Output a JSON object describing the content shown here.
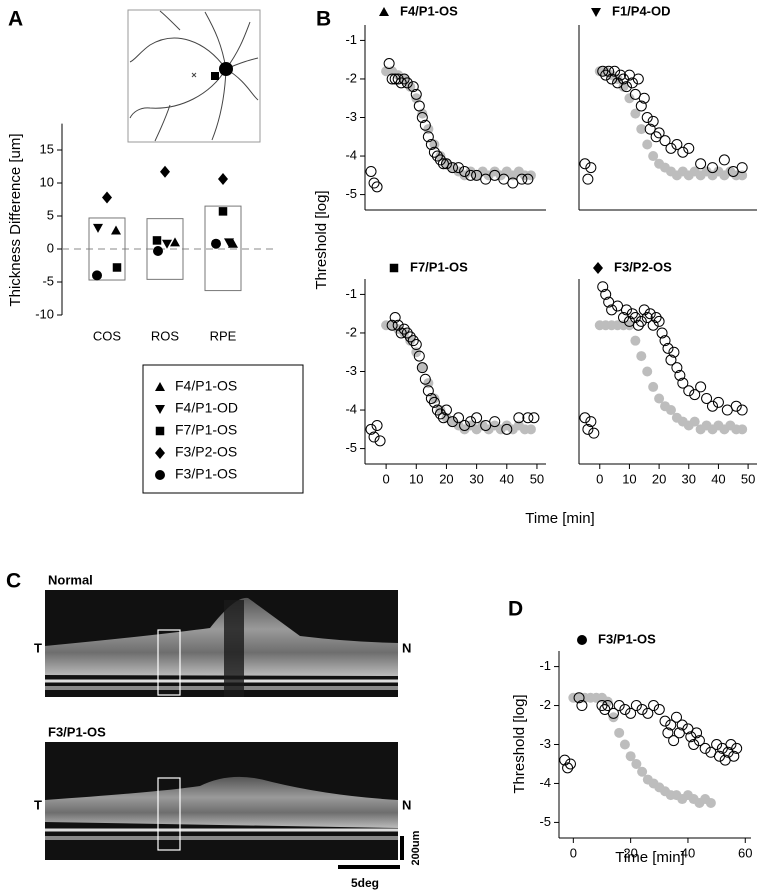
{
  "panel_labels": [
    "A",
    "B",
    "C",
    "D"
  ],
  "shared_axes": {
    "y_label": "Threshold [log]",
    "x_label": "Time [min]"
  },
  "oct": {
    "images": [
      {
        "title": "Normal",
        "left": "T",
        "right": "N"
      },
      {
        "title": "F3/P1-OS",
        "left": "T",
        "right": "N"
      }
    ],
    "scale_bars": [
      "200um",
      "5deg"
    ]
  },
  "chart_data": [
    {
      "type": "range-dot",
      "y_label": "Thickness Difference [um]",
      "categories": [
        "COS",
        "ROS",
        "RPE"
      ],
      "ylim": [
        -10,
        19
      ],
      "yticks": [
        -10,
        -5,
        0,
        5,
        10,
        15
      ],
      "box_low": [
        -4.7,
        -4.6,
        -6.3
      ],
      "box_high": [
        4.7,
        4.6,
        6.5
      ],
      "reference_line": 0,
      "series": [
        {
          "name": "F4/P1-OS",
          "marker": "triangle",
          "color": "#000000",
          "values": [
            2.8,
            1.0,
            0.8
          ]
        },
        {
          "name": "F4/P1-OD",
          "marker": "triangle-down",
          "color": "#000000",
          "values": [
            3.2,
            0.8,
            1.0
          ]
        },
        {
          "name": "F7/P1-OS",
          "marker": "square",
          "color": "#000000",
          "values": [
            -2.8,
            1.3,
            5.7
          ]
        },
        {
          "name": "F3/P2-OS",
          "marker": "diamond",
          "color": "#000000",
          "values": [
            7.8,
            11.7,
            10.6
          ]
        },
        {
          "name": "F3/P1-OS",
          "marker": "circle",
          "color": "#000000",
          "values": [
            -4.0,
            -0.3,
            0.8
          ]
        }
      ]
    },
    {
      "type": "scatter",
      "title": "F4/P1-OS",
      "marker": "triangle",
      "xlim": [
        -7,
        53
      ],
      "ylim": [
        -5.4,
        -0.6
      ],
      "yticks": [
        -1,
        -2,
        -3,
        -4,
        -5
      ],
      "series": [
        {
          "color": "#bdbdbd",
          "filled": true,
          "x": [
            0,
            2,
            4,
            6,
            8,
            10,
            12,
            14,
            16,
            18,
            20,
            22,
            24,
            26,
            28,
            30,
            32,
            34,
            36,
            38,
            40,
            42,
            44,
            46,
            48
          ],
          "values": [
            -1.8,
            -1.8,
            -1.9,
            -2.0,
            -2.2,
            -2.5,
            -2.9,
            -3.3,
            -3.7,
            -4.0,
            -4.2,
            -4.3,
            -4.4,
            -4.5,
            -4.4,
            -4.5,
            -4.4,
            -4.5,
            -4.4,
            -4.5,
            -4.4,
            -4.5,
            -4.4,
            -4.5,
            -4.5
          ]
        },
        {
          "color": "#000000",
          "filled": false,
          "x": [
            -5,
            -4,
            -3,
            1,
            2,
            3,
            4,
            5,
            6,
            7,
            9,
            10,
            11,
            12,
            13,
            14,
            15,
            16,
            17,
            18,
            19,
            20,
            22,
            24,
            26,
            28,
            30,
            33,
            36,
            39,
            42,
            45,
            47
          ],
          "values": [
            -4.4,
            -4.7,
            -4.8,
            -1.6,
            -2,
            -2,
            -2,
            -2.1,
            -2,
            -2.1,
            -2.2,
            -2.4,
            -2.7,
            -3.0,
            -3.2,
            -3.5,
            -3.7,
            -3.9,
            -4.0,
            -4.1,
            -4.2,
            -4.2,
            -4.3,
            -4.3,
            -4.4,
            -4.5,
            -4.5,
            -4.6,
            -4.5,
            -4.6,
            -4.7,
            -4.6,
            -4.6
          ]
        }
      ]
    },
    {
      "type": "scatter",
      "title": "F1/P4-OD",
      "marker": "triangle-down",
      "xlim": [
        -7,
        53
      ],
      "ylim": [
        -5.4,
        -0.6
      ],
      "series": [
        {
          "color": "#bdbdbd",
          "filled": true,
          "x": [
            0,
            2,
            4,
            6,
            8,
            10,
            12,
            14,
            16,
            18,
            20,
            22,
            24,
            26,
            28,
            30,
            32,
            34,
            36,
            38,
            40,
            42,
            44,
            46,
            48
          ],
          "values": [
            -1.8,
            -1.8,
            -1.9,
            -2.0,
            -2.2,
            -2.5,
            -2.9,
            -3.3,
            -3.7,
            -4.0,
            -4.2,
            -4.3,
            -4.4,
            -4.5,
            -4.4,
            -4.5,
            -4.4,
            -4.5,
            -4.4,
            -4.5,
            -4.4,
            -4.5,
            -4.4,
            -4.5,
            -4.5
          ]
        },
        {
          "color": "#000000",
          "filled": false,
          "x": [
            -5,
            -4,
            -3,
            1,
            2,
            3,
            4,
            5,
            6,
            7,
            8,
            9,
            10,
            11,
            12,
            13,
            14,
            15,
            16,
            17,
            18,
            19,
            20,
            22,
            24,
            26,
            28,
            30,
            34,
            38,
            42,
            45,
            48
          ],
          "values": [
            -4.2,
            -4.6,
            -4.3,
            -1.8,
            -1.9,
            -1.8,
            -2.0,
            -1.8,
            -2.1,
            -1.9,
            -2.0,
            -2.2,
            -1.9,
            -2.1,
            -2.4,
            -2.0,
            -2.7,
            -2.5,
            -3.0,
            -3.3,
            -3.1,
            -3.5,
            -3.4,
            -3.6,
            -3.8,
            -3.7,
            -3.9,
            -3.8,
            -4.2,
            -4.3,
            -4.1,
            -4.4,
            -4.3
          ]
        }
      ]
    },
    {
      "type": "scatter",
      "title": "F7/P1-OS",
      "marker": "square",
      "xlim": [
        -7,
        53
      ],
      "ylim": [
        -5.4,
        -0.6
      ],
      "yticks": [
        -1,
        -2,
        -3,
        -4,
        -5
      ],
      "xticks": [
        0,
        10,
        20,
        30,
        40,
        50
      ],
      "series": [
        {
          "color": "#bdbdbd",
          "filled": true,
          "x": [
            0,
            2,
            4,
            6,
            8,
            10,
            12,
            14,
            16,
            18,
            20,
            22,
            24,
            26,
            28,
            30,
            32,
            34,
            36,
            38,
            40,
            42,
            44,
            46,
            48
          ],
          "values": [
            -1.8,
            -1.8,
            -1.9,
            -2.0,
            -2.2,
            -2.5,
            -2.9,
            -3.3,
            -3.7,
            -4.0,
            -4.2,
            -4.3,
            -4.4,
            -4.5,
            -4.4,
            -4.5,
            -4.4,
            -4.5,
            -4.4,
            -4.5,
            -4.4,
            -4.5,
            -4.4,
            -4.5,
            -4.5
          ]
        },
        {
          "color": "#000000",
          "filled": false,
          "x": [
            -5,
            -4,
            -3,
            -2,
            2,
            3,
            4,
            5,
            6,
            7,
            8,
            9,
            10,
            11,
            12,
            13,
            14,
            15,
            16,
            17,
            18,
            19,
            20,
            22,
            24,
            26,
            28,
            30,
            33,
            36,
            40,
            44,
            47,
            49
          ],
          "values": [
            -4.5,
            -4.7,
            -4.4,
            -4.8,
            -1.8,
            -1.6,
            -1.8,
            -2.0,
            -1.9,
            -2.0,
            -2.1,
            -2.2,
            -2.3,
            -2.6,
            -2.9,
            -3.2,
            -3.5,
            -3.7,
            -3.8,
            -4.0,
            -4.1,
            -4.2,
            -4.0,
            -4.3,
            -4.2,
            -4.4,
            -4.3,
            -4.2,
            -4.4,
            -4.3,
            -4.5,
            -4.2,
            -4.2,
            -4.2
          ]
        }
      ]
    },
    {
      "type": "scatter",
      "title": "F3/P2-OS",
      "marker": "diamond",
      "xlim": [
        -7,
        53
      ],
      "ylim": [
        -5.4,
        -0.6
      ],
      "xticks": [
        0,
        10,
        20,
        30,
        40,
        50
      ],
      "series": [
        {
          "color": "#bdbdbd",
          "filled": true,
          "x": [
            0,
            2,
            4,
            6,
            8,
            10,
            12,
            14,
            16,
            18,
            20,
            22,
            24,
            26,
            28,
            30,
            32,
            34,
            36,
            38,
            40,
            42,
            44,
            46,
            48
          ],
          "values": [
            -1.8,
            -1.8,
            -1.8,
            -1.8,
            -1.8,
            -1.8,
            -2.2,
            -2.6,
            -3.0,
            -3.4,
            -3.7,
            -3.9,
            -4.0,
            -4.2,
            -4.3,
            -4.4,
            -4.3,
            -4.5,
            -4.4,
            -4.5,
            -4.4,
            -4.5,
            -4.4,
            -4.5,
            -4.5
          ]
        },
        {
          "color": "#000000",
          "filled": false,
          "x": [
            -5,
            -4,
            -3,
            -2,
            1,
            2,
            3,
            4,
            6,
            8,
            9,
            10,
            11,
            12,
            13,
            14,
            15,
            16,
            17,
            18,
            19,
            20,
            21,
            22,
            23,
            24,
            25,
            26,
            27,
            28,
            30,
            32,
            34,
            36,
            38,
            40,
            43,
            46,
            48
          ],
          "values": [
            -4.2,
            -4.5,
            -4.3,
            -4.6,
            -0.8,
            -1.0,
            -1.2,
            -1.4,
            -1.3,
            -1.6,
            -1.4,
            -1.7,
            -1.5,
            -1.6,
            -1.8,
            -1.7,
            -1.4,
            -1.6,
            -1.5,
            -1.8,
            -1.6,
            -1.7,
            -2.0,
            -2.2,
            -2.4,
            -2.7,
            -2.5,
            -2.9,
            -3.1,
            -3.3,
            -3.5,
            -3.6,
            -3.4,
            -3.7,
            -3.9,
            -3.8,
            -4.0,
            -3.9,
            -4.0
          ]
        }
      ]
    },
    {
      "type": "scatter",
      "title": "F3/P1-OS",
      "marker": "circle",
      "y_label": "Threshold [log]",
      "x_label": "Time [min]",
      "xlim": [
        -5,
        62
      ],
      "ylim": [
        -5.4,
        -0.6
      ],
      "yticks": [
        -1,
        -2,
        -3,
        -4,
        -5
      ],
      "xticks": [
        0,
        20,
        40,
        60
      ],
      "series": [
        {
          "color": "#bdbdbd",
          "filled": true,
          "x": [
            0,
            2,
            4,
            6,
            8,
            10,
            12,
            14,
            16,
            18,
            20,
            22,
            24,
            26,
            28,
            30,
            32,
            34,
            36,
            38,
            40,
            42,
            44,
            46,
            48
          ],
          "values": [
            -1.8,
            -1.8,
            -1.8,
            -1.8,
            -1.8,
            -1.8,
            -1.9,
            -2.3,
            -2.7,
            -3.0,
            -3.3,
            -3.5,
            -3.7,
            -3.9,
            -4.0,
            -4.1,
            -4.2,
            -4.3,
            -4.3,
            -4.4,
            -4.3,
            -4.4,
            -4.5,
            -4.4,
            -4.5
          ]
        },
        {
          "color": "#000000",
          "filled": false,
          "x": [
            -3,
            -2,
            -1,
            2,
            3,
            10,
            11,
            12,
            14,
            16,
            18,
            20,
            22,
            24,
            26,
            28,
            30,
            32,
            33,
            34,
            35,
            36,
            37,
            38,
            40,
            41,
            42,
            43,
            44,
            46,
            48,
            50,
            51,
            52,
            53,
            54,
            55,
            56,
            57
          ],
          "values": [
            -3.4,
            -3.6,
            -3.5,
            -1.8,
            -2.0,
            -2.0,
            -2.1,
            -2.0,
            -2.2,
            -2.0,
            -2.1,
            -2.2,
            -2.0,
            -2.1,
            -2.2,
            -2.0,
            -2.1,
            -2.4,
            -2.7,
            -2.5,
            -2.9,
            -2.3,
            -2.7,
            -2.5,
            -2.6,
            -2.8,
            -3.0,
            -2.7,
            -2.9,
            -3.1,
            -3.2,
            -3.0,
            -3.3,
            -3.1,
            -3.4,
            -3.2,
            -3.0,
            -3.3,
            -3.1
          ]
        }
      ]
    }
  ]
}
